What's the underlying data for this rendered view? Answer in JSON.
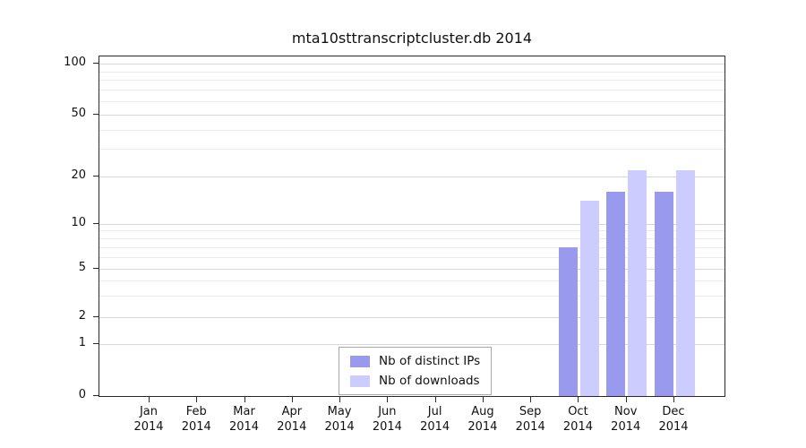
{
  "chart_data": {
    "type": "bar",
    "title": "mta10sttranscriptcluster.db 2014",
    "year": "2014",
    "categories": [
      "Jan",
      "Feb",
      "Mar",
      "Apr",
      "May",
      "Jun",
      "Jul",
      "Aug",
      "Sep",
      "Oct",
      "Nov",
      "Dec"
    ],
    "series": [
      {
        "name": "Nb of distinct IPs",
        "color": "#9999ee",
        "values": [
          0,
          0,
          0,
          0,
          0,
          0,
          0,
          0,
          0,
          7,
          16,
          16
        ]
      },
      {
        "name": "Nb of downloads",
        "color": "#ccccff",
        "values": [
          0,
          0,
          0,
          0,
          0,
          0,
          0,
          0,
          0,
          14,
          22,
          22
        ]
      }
    ],
    "yticks": [
      0,
      1,
      2,
      5,
      10,
      20,
      50,
      100
    ],
    "minor_gridlines": [
      3,
      4,
      6,
      7,
      8,
      9,
      30,
      40,
      60,
      70,
      80,
      90
    ],
    "scale": "log-like (symlog with 0 baseline)",
    "ylim": [
      0,
      110
    ],
    "grid": true,
    "legend_position": "bottom-center"
  }
}
